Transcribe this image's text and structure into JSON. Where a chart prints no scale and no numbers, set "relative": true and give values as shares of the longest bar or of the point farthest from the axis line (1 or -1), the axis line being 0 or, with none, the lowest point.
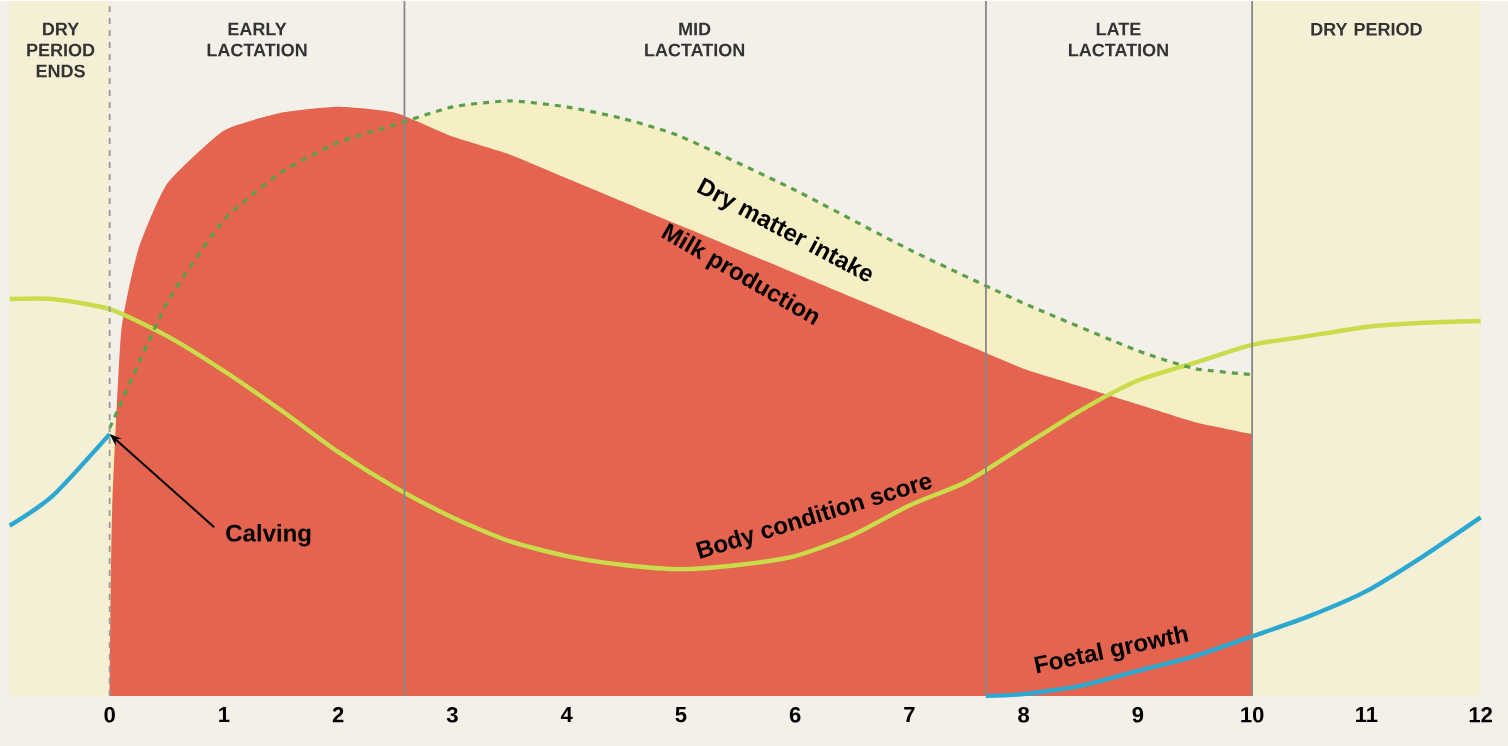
{
  "chart_data": {
    "type": "area",
    "relative": true,
    "xlim": [
      -0.96,
      12.24
    ],
    "xticks": [
      0,
      1,
      2,
      3,
      4,
      5,
      6,
      7,
      8,
      9,
      10,
      11,
      12
    ],
    "series": [
      {
        "name": "Dry matter intake",
        "color": "#f6efc4",
        "line_style": "dashed",
        "x": [
          0,
          0.5,
          1,
          1.5,
          2,
          2.5,
          3,
          3.5,
          4,
          4.5,
          5,
          6,
          7,
          8,
          9,
          9.5,
          10
        ],
        "values": [
          0.45,
          0.66,
          0.8,
          0.88,
          0.93,
          0.96,
          0.99,
          1.0,
          0.99,
          0.97,
          0.94,
          0.85,
          0.75,
          0.66,
          0.58,
          0.55,
          0.54
        ]
      },
      {
        "name": "Milk production",
        "color": "#e4644f",
        "x": [
          0,
          0.02,
          0.1,
          0.25,
          0.5,
          1,
          1.5,
          2,
          2.5,
          3,
          3.5,
          4,
          5,
          6,
          7,
          7.5,
          8,
          8.5,
          9,
          9.5,
          10
        ],
        "values": [
          0,
          0.3,
          0.61,
          0.75,
          0.86,
          0.95,
          0.98,
          0.99,
          0.98,
          0.94,
          0.91,
          0.87,
          0.79,
          0.71,
          0.63,
          0.59,
          0.55,
          0.52,
          0.49,
          0.46,
          0.44
        ]
      },
      {
        "name": "Body condition score",
        "type": "line",
        "color": "#c9dc4a",
        "x": [
          -0.875,
          -0.5,
          0,
          0.5,
          1,
          1.5,
          2,
          2.5,
          3,
          3.5,
          4,
          4.5,
          5,
          5.5,
          6,
          6.5,
          7,
          7.5,
          8,
          8.5,
          9,
          9.5,
          10,
          10.5,
          11,
          11.5,
          12
        ],
        "values": [
          0.667,
          0.667,
          0.65,
          0.605,
          0.546,
          0.48,
          0.41,
          0.35,
          0.3,
          0.26,
          0.235,
          0.22,
          0.213,
          0.22,
          0.235,
          0.27,
          0.32,
          0.36,
          0.42,
          0.48,
          0.53,
          0.56,
          0.59,
          0.605,
          0.62,
          0.627,
          0.63
        ]
      },
      {
        "name": "Foetal growth",
        "type": "line",
        "color": "#2aa8d0",
        "x": [
          -0.875,
          -0.5,
          0,
          4,
          7.67,
          8,
          8.5,
          9,
          9.5,
          10,
          10.5,
          11,
          11.5,
          12
        ],
        "values": [
          0.286,
          0.336,
          0.44,
          null,
          0,
          0.003,
          0.017,
          0.042,
          0.067,
          0.1,
          0.134,
          0.176,
          0.235,
          0.3
        ]
      }
    ],
    "bands": [
      {
        "axis": "x",
        "from": -0.875,
        "to": 0,
        "color": "#f5efd6"
      },
      {
        "axis": "x",
        "from": 10,
        "to": 12,
        "color": "#f5efd6"
      }
    ],
    "ref_lines": [
      {
        "axis": "x",
        "value": 0,
        "line_style": "dashed",
        "color": "#999999"
      },
      {
        "axis": "x",
        "value": 2.58,
        "color": "#888888"
      },
      {
        "axis": "x",
        "value": 7.67,
        "color": "#888888"
      },
      {
        "axis": "x",
        "value": 10,
        "color": "#888888"
      }
    ],
    "annotations": [
      {
        "text": "Calving",
        "x": 0,
        "y": 0.44
      },
      "DRY PERIOD ENDS",
      "EARLY LACTATION",
      "MID LACTATION",
      "LATE LACTATION",
      "DRY PERIOD"
    ]
  }
}
